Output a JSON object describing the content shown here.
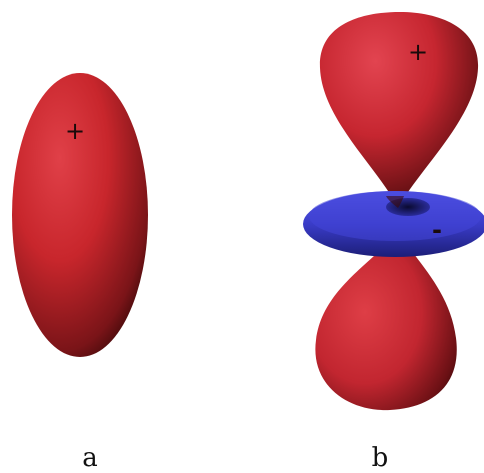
{
  "panels": [
    {
      "label": "a",
      "lobe_sign": "+"
    },
    {
      "label": "b",
      "upper_lobe_sign": "+",
      "torus_sign": "-"
    }
  ],
  "colors": {
    "positive_lobe": "#c8262c",
    "negative_torus": "#3a3cc8",
    "background": "#ffffff"
  }
}
